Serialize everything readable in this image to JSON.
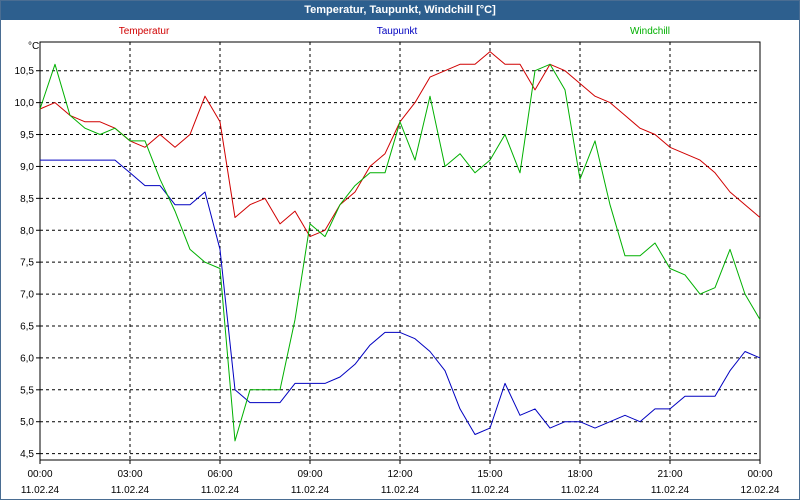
{
  "chart_data": {
    "type": "line",
    "title": "Temperatur, Taupunkt, Windchill [°C]",
    "unit_label": "°C",
    "ylim": [
      4.4,
      10.95
    ],
    "y_ticks": [
      4.5,
      5.0,
      5.5,
      6.0,
      6.5,
      7.0,
      7.5,
      8.0,
      8.5,
      9.0,
      9.5,
      10.0,
      10.5
    ],
    "y_tick_labels": [
      "4,5",
      "5,0",
      "5,5",
      "6,0",
      "6,5",
      "7,0",
      "7,5",
      "8,0",
      "8,5",
      "9,0",
      "9,5",
      "10,0",
      "10,5"
    ],
    "xlim": [
      0,
      24
    ],
    "x_ticks": [
      {
        "hour": 0,
        "time": "00:00",
        "date": "11.02.24"
      },
      {
        "hour": 3,
        "time": "03:00",
        "date": "11.02.24"
      },
      {
        "hour": 6,
        "time": "06:00",
        "date": "11.02.24"
      },
      {
        "hour": 9,
        "time": "09:00",
        "date": "11.02.24"
      },
      {
        "hour": 12,
        "time": "12:00",
        "date": "11.02.24"
      },
      {
        "hour": 15,
        "time": "15:00",
        "date": "11.02.24"
      },
      {
        "hour": 18,
        "time": "18:00",
        "date": "11.02.24"
      },
      {
        "hour": 21,
        "time": "21:00",
        "date": "11.02.24"
      },
      {
        "hour": 24,
        "time": "00:00",
        "date": "12.02.24"
      }
    ],
    "grid": true,
    "x": [
      0,
      0.5,
      1,
      1.5,
      2,
      2.5,
      3,
      3.5,
      4,
      4.5,
      5,
      5.5,
      6,
      6.5,
      7,
      7.5,
      8,
      8.5,
      9,
      9.5,
      10,
      10.5,
      11,
      11.5,
      12,
      12.5,
      13,
      13.5,
      14,
      14.5,
      15,
      15.5,
      16,
      16.5,
      17,
      17.5,
      18,
      18.5,
      19,
      19.5,
      20,
      20.5,
      21,
      21.5,
      22,
      22.5,
      23,
      23.5,
      24
    ],
    "series": [
      {
        "name": "Temperatur",
        "color": "#d00000",
        "values": [
          9.9,
          10.0,
          9.8,
          9.7,
          9.7,
          9.6,
          9.4,
          9.3,
          9.5,
          9.3,
          9.5,
          10.1,
          9.7,
          8.2,
          8.4,
          8.5,
          8.1,
          8.3,
          7.9,
          8.0,
          8.4,
          8.6,
          9.0,
          9.2,
          9.7,
          10.0,
          10.4,
          10.5,
          10.6,
          10.6,
          10.8,
          10.6,
          10.6,
          10.2,
          10.6,
          10.5,
          10.3,
          10.1,
          10.0,
          9.8,
          9.6,
          9.5,
          9.3,
          9.2,
          9.1,
          8.9,
          8.6,
          8.4,
          8.2
        ]
      },
      {
        "name": "Taupunkt",
        "color": "#0000c0",
        "values": [
          9.1,
          9.1,
          9.1,
          9.1,
          9.1,
          9.1,
          8.9,
          8.7,
          8.7,
          8.4,
          8.4,
          8.6,
          7.7,
          5.5,
          5.3,
          5.3,
          5.3,
          5.6,
          5.6,
          5.6,
          5.7,
          5.9,
          6.2,
          6.4,
          6.4,
          6.3,
          6.1,
          5.8,
          5.2,
          4.8,
          4.9,
          5.6,
          5.1,
          5.2,
          4.9,
          5.0,
          5.0,
          4.9,
          5.0,
          5.1,
          5.0,
          5.2,
          5.2,
          5.4,
          5.4,
          5.4,
          5.8,
          6.1,
          6.0
        ]
      },
      {
        "name": "Windchill",
        "color": "#00b000",
        "values": [
          9.9,
          10.6,
          9.8,
          9.6,
          9.5,
          9.6,
          9.4,
          9.4,
          8.8,
          8.3,
          7.7,
          7.5,
          7.4,
          4.7,
          5.5,
          5.5,
          5.5,
          6.6,
          8.1,
          7.9,
          8.4,
          8.7,
          8.9,
          8.9,
          9.7,
          9.1,
          10.1,
          9.0,
          9.2,
          8.9,
          9.1,
          9.5,
          8.9,
          10.5,
          10.6,
          10.2,
          8.8,
          9.4,
          8.4,
          7.6,
          7.6,
          7.8,
          7.4,
          7.3,
          7.0,
          7.1,
          7.7,
          7.0,
          6.6
        ]
      }
    ]
  }
}
